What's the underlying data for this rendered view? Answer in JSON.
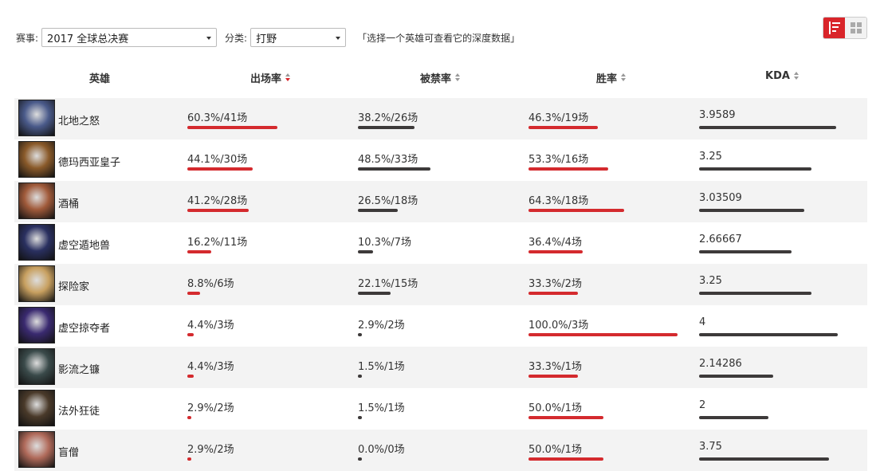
{
  "filters": {
    "event_label": "赛事:",
    "event_value": "2017 全球总决赛",
    "category_label": "分类:",
    "category_value": "打野",
    "hint": "「选择一个英雄可查看它的深度数据」"
  },
  "columns": {
    "hero": "英雄",
    "pick": "出场率",
    "ban": "被禁率",
    "win": "胜率",
    "kda": "KDA"
  },
  "rows": [
    {
      "name": "北地之怒",
      "pick": "60.3%/41场",
      "pick_pct": 60.3,
      "ban": "38.2%/26场",
      "ban_pct": 38.2,
      "win": "46.3%/19场",
      "win_pct": 46.3,
      "kda": "3.9589",
      "kda_val": 3.9589,
      "color": "#4a5a8a"
    },
    {
      "name": "德玛西亚皇子",
      "pick": "44.1%/30场",
      "pick_pct": 44.1,
      "ban": "48.5%/33场",
      "ban_pct": 48.5,
      "win": "53.3%/16场",
      "win_pct": 53.3,
      "kda": "3.25",
      "kda_val": 3.25,
      "color": "#8a5a2a"
    },
    {
      "name": "酒桶",
      "pick": "41.2%/28场",
      "pick_pct": 41.2,
      "ban": "26.5%/18场",
      "ban_pct": 26.5,
      "win": "64.3%/18场",
      "win_pct": 64.3,
      "kda": "3.03509",
      "kda_val": 3.03509,
      "color": "#a05a3a"
    },
    {
      "name": "虚空遁地兽",
      "pick": "16.2%/11场",
      "pick_pct": 16.2,
      "ban": "10.3%/7场",
      "ban_pct": 10.3,
      "win": "36.4%/4场",
      "win_pct": 36.4,
      "kda": "2.66667",
      "kda_val": 2.66667,
      "color": "#2a3060"
    },
    {
      "name": "探险家",
      "pick": "8.8%/6场",
      "pick_pct": 8.8,
      "ban": "22.1%/15场",
      "ban_pct": 22.1,
      "win": "33.3%/2场",
      "win_pct": 33.3,
      "kda": "3.25",
      "kda_val": 3.25,
      "color": "#c8a060"
    },
    {
      "name": "虚空掠夺者",
      "pick": "4.4%/3场",
      "pick_pct": 4.4,
      "ban": "2.9%/2场",
      "ban_pct": 2.9,
      "win": "100.0%/3场",
      "win_pct": 100.0,
      "kda": "4",
      "kda_val": 4,
      "color": "#3a2a70"
    },
    {
      "name": "影流之镰",
      "pick": "4.4%/3场",
      "pick_pct": 4.4,
      "ban": "1.5%/1场",
      "ban_pct": 1.5,
      "win": "33.3%/1场",
      "win_pct": 33.3,
      "kda": "2.14286",
      "kda_val": 2.14286,
      "color": "#3a4a4a"
    },
    {
      "name": "法外狂徒",
      "pick": "2.9%/2场",
      "pick_pct": 2.9,
      "ban": "1.5%/1场",
      "ban_pct": 1.5,
      "win": "50.0%/1场",
      "win_pct": 50.0,
      "kda": "2",
      "kda_val": 2,
      "color": "#4a3a2a"
    },
    {
      "name": "盲僧",
      "pick": "2.9%/2场",
      "pick_pct": 2.9,
      "ban": "0.0%/0场",
      "ban_pct": 0.0,
      "win": "50.0%/1场",
      "win_pct": 50.0,
      "kda": "3.75",
      "kda_val": 3.75,
      "color": "#b06a5a"
    }
  ]
}
